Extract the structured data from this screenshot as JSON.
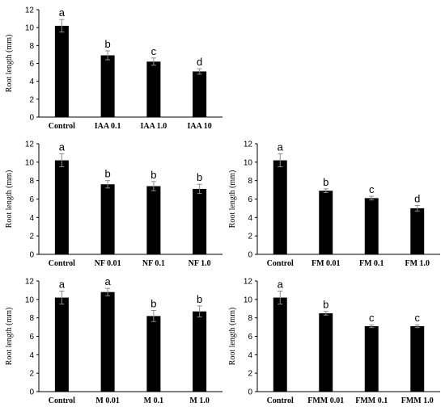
{
  "chart_data": [
    {
      "type": "bar",
      "categories": [
        "Control",
        "IAA 0.1",
        "IAA 1.0",
        "IAA 10"
      ],
      "values": [
        10.2,
        6.9,
        6.2,
        5.1
      ],
      "errors": [
        0.7,
        0.5,
        0.4,
        0.3
      ],
      "letters": [
        "a",
        "b",
        "c",
        "d"
      ],
      "ylabel": "Root length (mm)",
      "ylim": [
        0,
        12
      ],
      "yticks": [
        0,
        2,
        4,
        6,
        8,
        10,
        12
      ],
      "grid": false,
      "color": "#000000"
    },
    {
      "type": "bar",
      "categories": [
        "Control",
        "NF 0.01",
        "NF 0.1",
        "NF 1.0"
      ],
      "values": [
        10.2,
        7.6,
        7.4,
        7.1
      ],
      "errors": [
        0.7,
        0.4,
        0.5,
        0.5
      ],
      "letters": [
        "a",
        "b",
        "b",
        "b"
      ],
      "ylabel": "Root length (mm)",
      "ylim": [
        0,
        12
      ],
      "yticks": [
        0,
        2,
        4,
        6,
        8,
        10,
        12
      ],
      "grid": false,
      "color": "#000000"
    },
    {
      "type": "bar",
      "categories": [
        "Control",
        "FM 0.01",
        "FM 0.1",
        "FM 1.0"
      ],
      "values": [
        10.2,
        6.9,
        6.1,
        5.0
      ],
      "errors": [
        0.7,
        0.2,
        0.2,
        0.3
      ],
      "letters": [
        "a",
        "b",
        "c",
        "d"
      ],
      "ylabel": "Root length (mm)",
      "ylim": [
        0,
        12
      ],
      "yticks": [
        0,
        2,
        4,
        6,
        8,
        10,
        12
      ],
      "grid": false,
      "color": "#000000"
    },
    {
      "type": "bar",
      "categories": [
        "Control",
        "M 0.01",
        "M 0.1",
        "M 1.0"
      ],
      "values": [
        10.2,
        10.8,
        8.2,
        8.7
      ],
      "errors": [
        0.7,
        0.4,
        0.6,
        0.6
      ],
      "letters": [
        "a",
        "a",
        "b",
        "b"
      ],
      "ylabel": "Root length (mm)",
      "ylim": [
        0,
        12
      ],
      "yticks": [
        0,
        2,
        4,
        6,
        8,
        10,
        12
      ],
      "grid": false,
      "color": "#000000"
    },
    {
      "type": "bar",
      "categories": [
        "Control",
        "FMM 0.01",
        "FMM 0.1",
        "FMM 1.0"
      ],
      "values": [
        10.2,
        8.5,
        7.1,
        7.1
      ],
      "errors": [
        0.7,
        0.2,
        0.15,
        0.15
      ],
      "letters": [
        "a",
        "b",
        "c",
        "c"
      ],
      "ylabel": "Root length (mm)",
      "ylim": [
        0,
        12
      ],
      "yticks": [
        0,
        2,
        4,
        6,
        8,
        10,
        12
      ],
      "grid": false,
      "color": "#000000"
    }
  ]
}
